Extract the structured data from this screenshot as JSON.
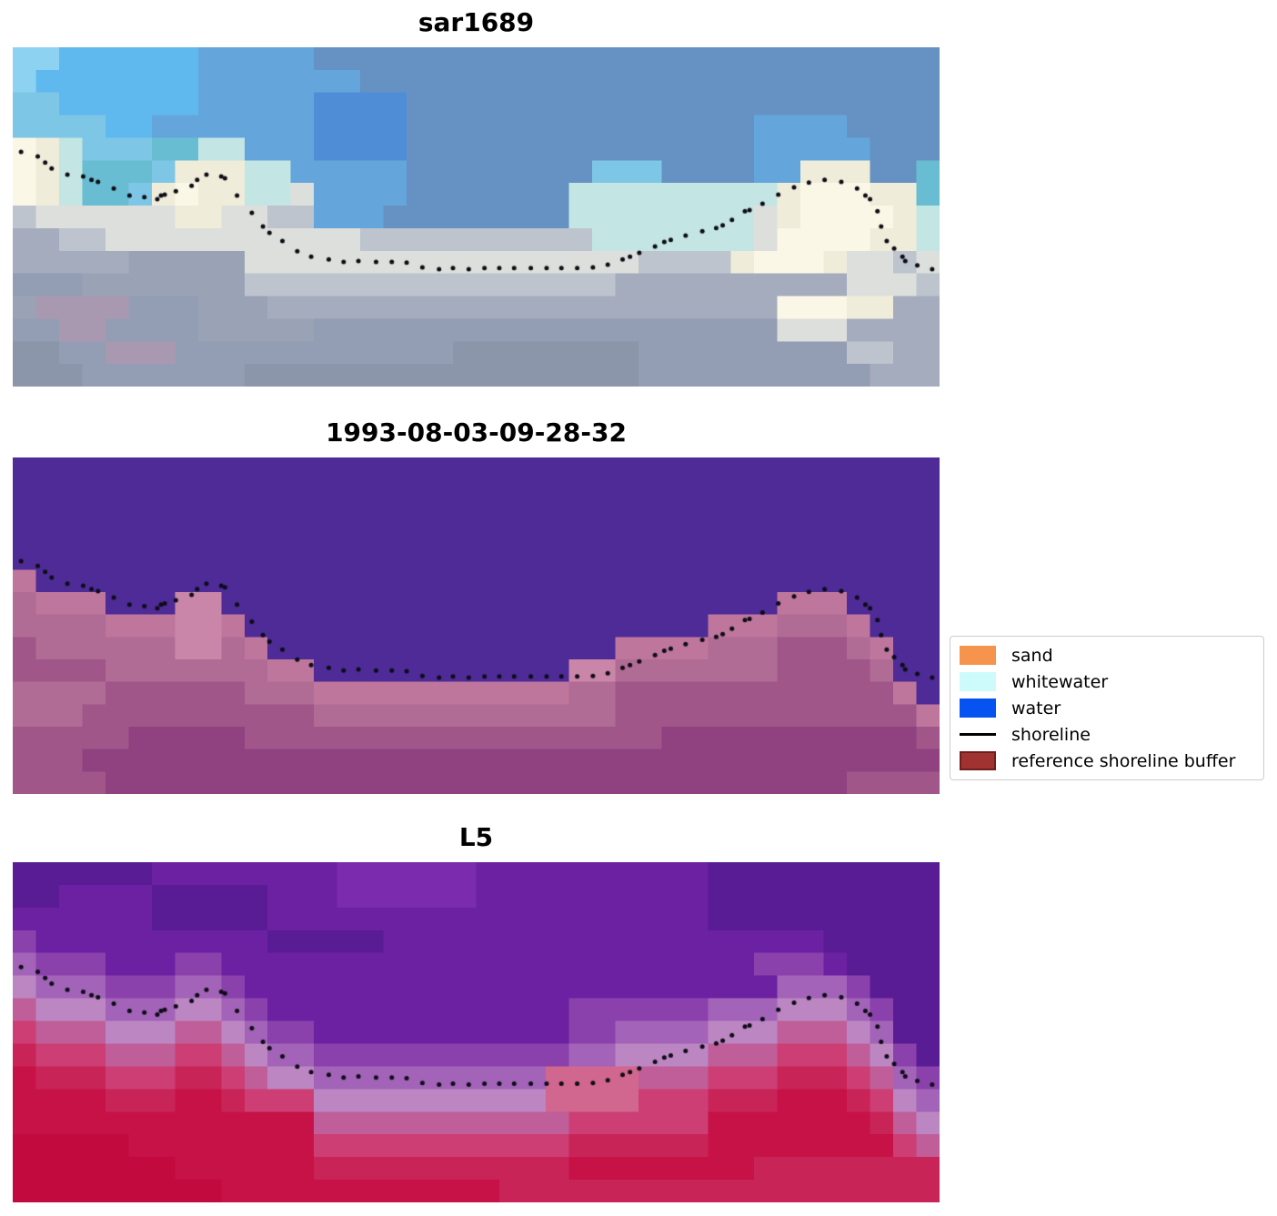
{
  "figure": {
    "background": "#ffffff"
  },
  "legend": {
    "items": [
      {
        "label": "sand",
        "type": "patch",
        "color": "#F6934C"
      },
      {
        "label": "whitewater",
        "type": "patch",
        "color": "#CDFBFC"
      },
      {
        "label": "water",
        "type": "patch",
        "color": "#0753F2"
      },
      {
        "label": "shoreline",
        "type": "line",
        "color": "#000000"
      },
      {
        "label": "reference shoreline buffer",
        "type": "patch",
        "color": "#A03232",
        "border_color": "#701D1D"
      }
    ]
  },
  "chart_data": [
    {
      "type": "heatmap",
      "title": "sar1689",
      "grid_cols": 40,
      "grid_rows": 15,
      "palette": {
        "a": "#8ED2F2",
        "b": "#5FB9EE",
        "c": "#64A6DC",
        "d": "#6592C2",
        "f": "#4F8ED6",
        "g": "#7EC6E6",
        "h": "#68BDD2",
        "i": "#C3E5E3",
        "w": "#F0ECDA",
        "W": "#FBF7E6",
        "x": "#DDDFDC",
        "l": "#BDC4CD",
        "m": "#A5ACBE",
        "n": "#939DB3",
        "o": "#9AA3B6",
        "p": "#A899B1",
        "q": "#8C96AB"
      },
      "rows": [
        "aabbbbbbcccccddddddddddddddddddddddddddd",
        "abbbbbbbcccccccddddddddddddddddddddddddd",
        "ggbbbbbbcccccffffddddddddddddddddddddddd",
        "ggggbbcccccccffffdddddddddddddddccccdddd",
        "Wwiggghhiicccffffdddddddddddddddcccccddd",
        "Wwihhhgwwwiicccccddddddddgggddddccwwwddh",
        "WwihhgwWwwiixccccdddddddiiiiiiiiiwWWWwwh",
        "lxxxxxxwwxxllcccddddddddiiiiiiiixwWWWWwi",
        "mmllxxxxxxxxxxxlllllllllliiiiiiixWWWWwwi",
        "mmmmmoooooxxxxxxxxxxxxxxxxxllllwWWWwxxlx",
        "nnnooooooollllllllllllllllmmmmmmmmmmxxxl",
        "oppppnnnooommmmmmmmmmmmmmmmmmmmmmWWWwwmm",
        "nnppnnnnooooonnnnnnnnnnnnnnnnnnnnxxxmmmm",
        "qqnnpppnnnnnnnnnnnnqqqqqqqqnnnnnnnnnllmm",
        "qqqnnnnnnnqqqqqqqqqqqqqqqqqnnnnnnnnnnmmm"
      ]
    },
    {
      "type": "heatmap",
      "title": "1993-08-03-09-28-32",
      "grid_cols": 40,
      "grid_rows": 15,
      "palette": {
        "U": "#4E2B97",
        "A": "#BE769C",
        "B": "#CA86A9",
        "C": "#B16C95",
        "D": "#A05689",
        "E": "#8F4180"
      },
      "rows": [
        "UUUUUUUUUUUUUUUUUUUUUUUUUUUUUUUUUUUUUUUU",
        "UUUUUUUUUUUUUUUUUUUUUUUUUUUUUUUUUUUUUUUU",
        "UUUUUUUUUUUUUUUUUUUUUUUUUUUUUUUUUUUUUUUU",
        "UUUUUUUUUUUUUUUUUUUUUUUUUUUUUUUUUUUUUUUU",
        "UUUUUUUUUUUUUUUUUUUUUUUUUUUUUUUUUUUUUUUU",
        "AUUUUUUUUUUUUUUUUUUUUUUUUUUUUUUUUUUUUUUU",
        "CAAAUUUBBUUUUUUUUUUUUUUUUUUUUUUUUAAAUUUU",
        "CCCCAAABBAUUUUUUUUUUUUUUUUUUUUAAACCCAUUU",
        "DCCCCCCBBCAUUUUUUUUUUUUUUUAAAACCCDDDCAUU",
        "DDDDCCCCCCCAAUUUUUUUUUUUBBCCCCCCCDDDDCUU",
        "CCCCDDDDDDCCCAAAAAAAAAAACCDDDDDDDDDDDDAU",
        "CCCDDDDDDDDDDCCCCCCCCCCCCCDDDDDDDDDDDDDA",
        "DDDDDEEEEEDDDDDDDDDDDDDDDDDDEEEEEEEEEEED",
        "DDDEEEEEEEEEEEEEEEEEEEEEEEEEEEEEEEEEEEEE",
        "DDDDEEEEEEEEEEEEEEEEEEEEEEEEEEEEEEEEDDDD"
      ]
    },
    {
      "type": "heatmap",
      "title": "L5",
      "grid_cols": 40,
      "grid_rows": 15,
      "palette": {
        "V": "#6B21A2",
        "v": "#5A1C95",
        "u": "#7A2BAE",
        "t": "#8A41AC",
        "T": "#A263B8",
        "L": "#BC86C2",
        "M": "#C05E99",
        "R": "#CC3E74",
        "r": "#C92458",
        "K": "#C61247",
        "k": "#C30A3E",
        "X": "#D1668F"
      },
      "rows": [
        "vvvvvvVVVVVVVVuuuuuuVVVVVVVVVVvvvvvvvvvv",
        "vvVVVVvvvvvVVVuuuuuuVVVVVVVVVVvvvvvvvvvv",
        "VVVVVVvvvvvVVVVVVVVVVVVVVVVVVVvvvvvvvvvv",
        "tVVVVVVVVVVvvvvvVVVVVVVVVVVVVVVVVVVvvvvv",
        "TtttVVVttVVVVVVVVVVVVVVVVVVVVVVVtttVvvv",
        "LTTTtttTTtVVVVVVVVVVVVVVVVVVVVVVVTTTtvvv",
        "MLLLTTTLLTtVVVVVVVVVVVVVttttttTTTLLLTtvv",
        "RMMMLLLMMLTttVVVVVVVVVVVttTTTTLLLMMMLTvv",
        "rRRRMMMRRMLTTtttttttttttTTLLLLMMMRRRMLtv",
        "KrrrRRRrrRMLLTTTTTTTTTTXXXXMMMRRRrrrRMTt",
        "KKKKrrrKKrRRRLLLLLLLLLLXXXXRRRrrrKKKrRLT",
        "KKKKKKKKKKKKKMMMMMMMMMMMRRRRRRKKKKKKKrML",
        "kkkkkKKKKKKKKRRRRRRRRRRRrrrrrrKKKKKKKKRM",
        "kkkkkkkKKKKKKrrrrrrrrrrrKKKKKKKKrrrrrrrr",
        "kkkkkkkkkKKKKKKKKKKKKrrrrrrrrrrrrrrrrrrr"
      ]
    },
    {
      "type": "scatter",
      "name": "shoreline",
      "marker": "dot",
      "color": "#0D0D16",
      "points": [
        [
          0.009,
          0.308
        ],
        [
          0.027,
          0.322
        ],
        [
          0.035,
          0.34
        ],
        [
          0.042,
          0.357
        ],
        [
          0.059,
          0.375
        ],
        [
          0.076,
          0.381
        ],
        [
          0.085,
          0.391
        ],
        [
          0.092,
          0.397
        ],
        [
          0.109,
          0.416
        ],
        [
          0.126,
          0.437
        ],
        [
          0.142,
          0.442
        ],
        [
          0.156,
          0.448
        ],
        [
          0.16,
          0.437
        ],
        [
          0.164,
          0.434
        ],
        [
          0.176,
          0.424
        ],
        [
          0.193,
          0.408
        ],
        [
          0.199,
          0.391
        ],
        [
          0.209,
          0.375
        ],
        [
          0.225,
          0.381
        ],
        [
          0.229,
          0.386
        ],
        [
          0.242,
          0.437
        ],
        [
          0.258,
          0.488
        ],
        [
          0.27,
          0.528
        ],
        [
          0.277,
          0.547
        ],
        [
          0.291,
          0.571
        ],
        [
          0.307,
          0.601
        ],
        [
          0.322,
          0.617
        ],
        [
          0.341,
          0.625
        ],
        [
          0.357,
          0.633
        ],
        [
          0.373,
          0.63
        ],
        [
          0.392,
          0.633
        ],
        [
          0.409,
          0.633
        ],
        [
          0.425,
          0.635
        ],
        [
          0.442,
          0.649
        ],
        [
          0.46,
          0.654
        ],
        [
          0.475,
          0.651
        ],
        [
          0.492,
          0.654
        ],
        [
          0.509,
          0.651
        ],
        [
          0.525,
          0.651
        ],
        [
          0.541,
          0.651
        ],
        [
          0.559,
          0.651
        ],
        [
          0.576,
          0.651
        ],
        [
          0.592,
          0.651
        ],
        [
          0.609,
          0.651
        ],
        [
          0.626,
          0.649
        ],
        [
          0.642,
          0.641
        ],
        [
          0.658,
          0.625
        ],
        [
          0.666,
          0.617
        ],
        [
          0.676,
          0.606
        ],
        [
          0.693,
          0.587
        ],
        [
          0.703,
          0.574
        ],
        [
          0.71,
          0.568
        ],
        [
          0.726,
          0.555
        ],
        [
          0.744,
          0.542
        ],
        [
          0.759,
          0.533
        ],
        [
          0.766,
          0.525
        ],
        [
          0.776,
          0.509
        ],
        [
          0.79,
          0.483
        ],
        [
          0.795,
          0.48
        ],
        [
          0.809,
          0.461
        ],
        [
          0.826,
          0.434
        ],
        [
          0.843,
          0.413
        ],
        [
          0.859,
          0.399
        ],
        [
          0.876,
          0.391
        ],
        [
          0.894,
          0.397
        ],
        [
          0.911,
          0.416
        ],
        [
          0.92,
          0.437
        ],
        [
          0.925,
          0.448
        ],
        [
          0.933,
          0.483
        ],
        [
          0.937,
          0.528
        ],
        [
          0.943,
          0.571
        ],
        [
          0.951,
          0.593
        ],
        [
          0.96,
          0.617
        ],
        [
          0.963,
          0.63
        ],
        [
          0.976,
          0.643
        ],
        [
          0.992,
          0.654
        ]
      ]
    }
  ]
}
